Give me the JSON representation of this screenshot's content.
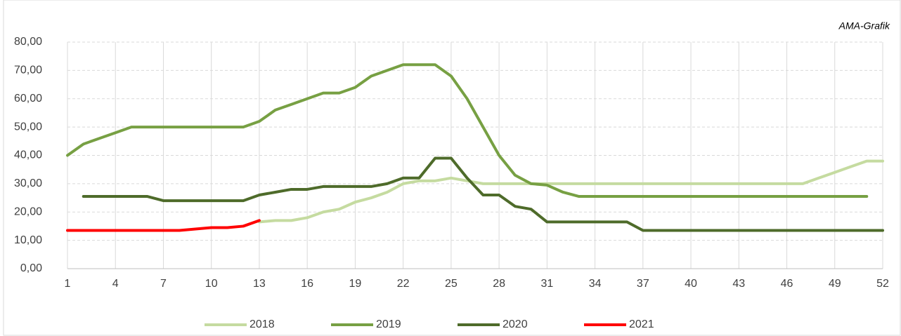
{
  "chart_data": {
    "type": "line",
    "annotation": "AMA-Grafik",
    "x": [
      1,
      2,
      3,
      4,
      5,
      6,
      7,
      8,
      9,
      10,
      11,
      12,
      13,
      14,
      15,
      16,
      17,
      18,
      19,
      20,
      21,
      22,
      23,
      24,
      25,
      26,
      27,
      28,
      29,
      30,
      31,
      32,
      33,
      34,
      35,
      36,
      37,
      38,
      39,
      40,
      41,
      42,
      43,
      44,
      45,
      46,
      47,
      48,
      49,
      50,
      51,
      52
    ],
    "xlim": [
      1,
      52
    ],
    "xticks": [
      1,
      4,
      7,
      10,
      13,
      16,
      19,
      22,
      25,
      28,
      31,
      34,
      37,
      40,
      43,
      46,
      49,
      52
    ],
    "ylim": [
      0,
      80
    ],
    "yticks": [
      {
        "value": 0,
        "label": "0,00"
      },
      {
        "value": 10,
        "label": "10,00"
      },
      {
        "value": 20,
        "label": "20,00"
      },
      {
        "value": 30,
        "label": "30,00"
      },
      {
        "value": 40,
        "label": "40,00"
      },
      {
        "value": 50,
        "label": "50,00"
      },
      {
        "value": 60,
        "label": "60,00"
      },
      {
        "value": 70,
        "label": "70,00"
      },
      {
        "value": 80,
        "label": "80,00"
      }
    ],
    "grid": true,
    "legend": "bottom",
    "series": [
      {
        "name": "2018",
        "color": "#c5dba0",
        "values": [
          null,
          null,
          null,
          null,
          null,
          null,
          null,
          null,
          null,
          null,
          null,
          null,
          16.5,
          17,
          17,
          18,
          20,
          21,
          23.5,
          25,
          27,
          30,
          31,
          31,
          32,
          31,
          30,
          30,
          30,
          30,
          30,
          30,
          30,
          30,
          30,
          30,
          30,
          30,
          30,
          30,
          30,
          30,
          30,
          30,
          30,
          30,
          30,
          32,
          34,
          36,
          38,
          38
        ]
      },
      {
        "name": "2019",
        "color": "#77a043",
        "values": [
          40,
          44,
          46,
          48,
          50,
          50,
          50,
          50,
          50,
          50,
          50,
          50,
          52,
          56,
          58,
          60,
          62,
          62,
          64,
          68,
          70,
          72,
          72,
          72,
          68,
          60,
          50,
          40,
          33,
          30,
          29.5,
          27,
          25.5,
          25.5,
          25.5,
          25.5,
          25.5,
          25.5,
          25.5,
          25.5,
          25.5,
          25.5,
          25.5,
          25.5,
          25.5,
          25.5,
          25.5,
          25.5,
          25.5,
          25.5,
          25.5,
          null
        ]
      },
      {
        "name": "2020",
        "color": "#4e6b2a",
        "values": [
          null,
          25.5,
          25.5,
          25.5,
          25.5,
          25.5,
          24,
          24,
          24,
          24,
          24,
          24,
          26,
          27,
          28,
          28,
          29,
          29,
          29,
          29,
          30,
          32,
          32,
          39,
          39,
          32,
          26,
          26,
          22,
          21,
          16.5,
          16.5,
          16.5,
          16.5,
          16.5,
          16.5,
          13.5,
          13.5,
          13.5,
          13.5,
          13.5,
          13.5,
          13.5,
          13.5,
          13.5,
          13.5,
          13.5,
          13.5,
          13.5,
          13.5,
          13.5,
          13.5
        ]
      },
      {
        "name": "2021",
        "color": "#ff0000",
        "values": [
          13.5,
          13.5,
          13.5,
          13.5,
          13.5,
          13.5,
          13.5,
          13.5,
          14,
          14.5,
          14.5,
          15,
          17,
          null,
          null,
          null,
          null,
          null,
          null,
          null,
          null,
          null,
          null,
          null,
          null,
          null,
          null,
          null,
          null,
          null,
          null,
          null,
          null,
          null,
          null,
          null,
          null,
          null,
          null,
          null,
          null,
          null,
          null,
          null,
          null,
          null,
          null,
          null,
          null,
          null,
          null,
          null
        ]
      }
    ]
  }
}
